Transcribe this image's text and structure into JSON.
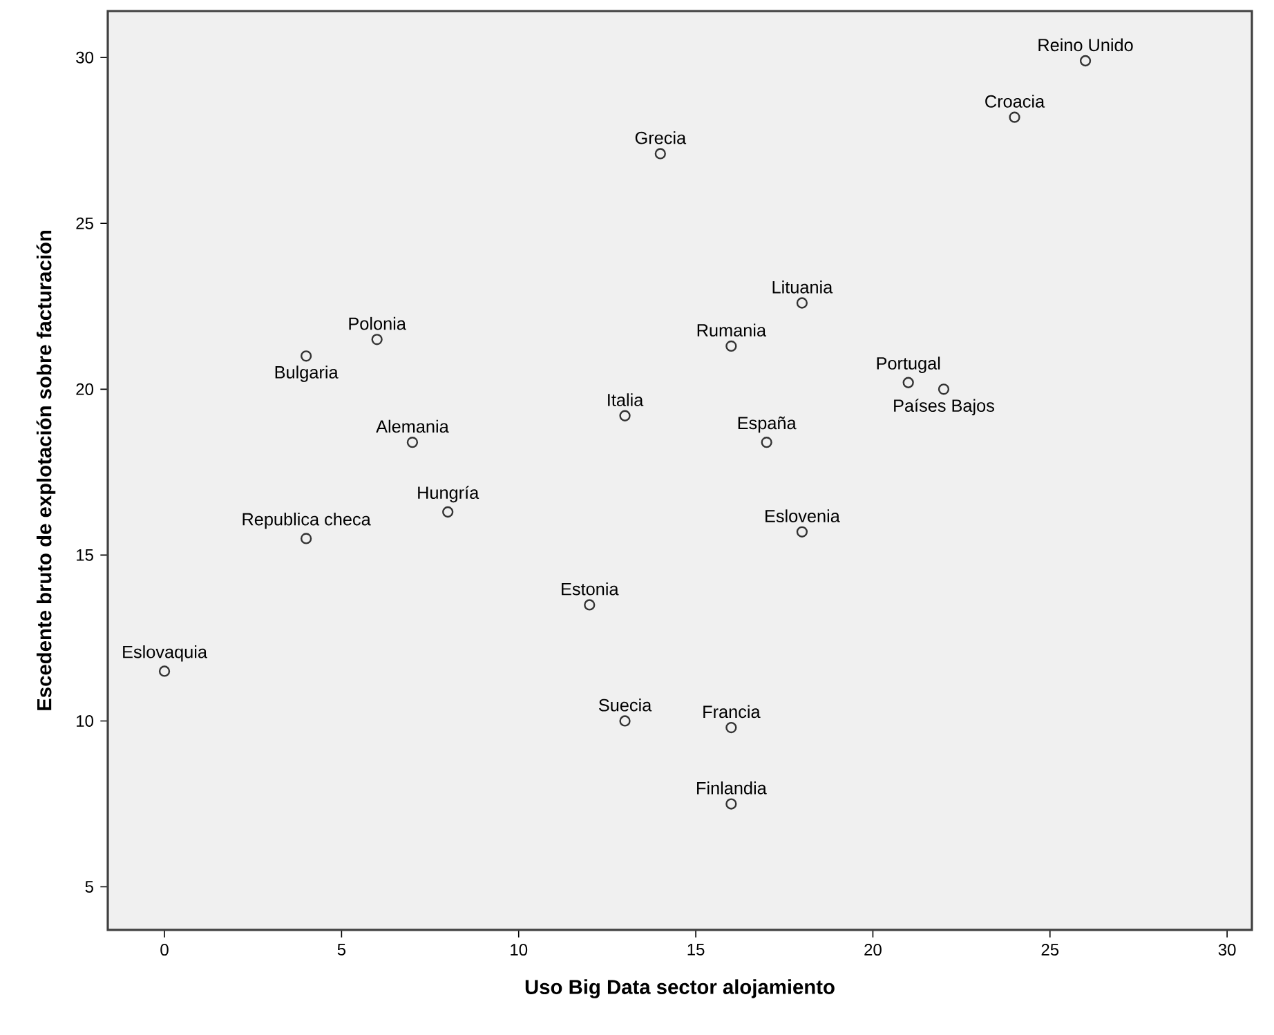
{
  "chart_data": {
    "type": "scatter",
    "xlabel": "Uso Big Data sector alojamiento",
    "ylabel": "Escedente bruto de explotación sobre facturación",
    "x": [
      26,
      24,
      14,
      18,
      16,
      21,
      22,
      13,
      17,
      18,
      12,
      13,
      16,
      16,
      6,
      4,
      7,
      8,
      4,
      0
    ],
    "values": [
      29.9,
      28.2,
      27.1,
      22.6,
      21.3,
      20.2,
      20.0,
      19.2,
      18.4,
      15.7,
      13.5,
      10.0,
      9.8,
      7.5,
      21.5,
      21.0,
      18.4,
      16.3,
      15.5,
      11.5
    ],
    "color": "#333333",
    "marker": "circle",
    "xlim": [
      -1.6,
      30.7
    ],
    "ylim": [
      3.7,
      31.4
    ],
    "xticks": [
      0,
      5,
      10,
      15,
      20,
      25,
      30
    ],
    "yticks": [
      5,
      10,
      15,
      20,
      25,
      30
    ],
    "grid": false,
    "annotations": [
      {
        "text": "Reino Unido",
        "x": 26,
        "y": 29.9
      },
      {
        "text": "Croacia",
        "x": 24,
        "y": 28.2
      },
      {
        "text": "Grecia",
        "x": 14,
        "y": 27.1
      },
      {
        "text": "Lituania",
        "x": 18,
        "y": 22.6
      },
      {
        "text": "Rumania",
        "x": 16,
        "y": 21.3
      },
      {
        "text": "Portugal",
        "x": 21,
        "y": 20.2
      },
      {
        "text": "Países Bajos",
        "x": 22,
        "y": 20.0
      },
      {
        "text": "Italia",
        "x": 13,
        "y": 19.2
      },
      {
        "text": "España",
        "x": 17,
        "y": 18.4
      },
      {
        "text": "Eslovenia",
        "x": 18,
        "y": 15.7
      },
      {
        "text": "Estonia",
        "x": 12,
        "y": 13.5
      },
      {
        "text": "Suecia",
        "x": 13,
        "y": 10.0
      },
      {
        "text": "Francia",
        "x": 16,
        "y": 9.8
      },
      {
        "text": "Finlandia",
        "x": 16,
        "y": 7.5
      },
      {
        "text": "Polonia",
        "x": 6,
        "y": 21.5
      },
      {
        "text": "Bulgaria",
        "x": 4,
        "y": 21.0
      },
      {
        "text": "Alemania",
        "x": 7,
        "y": 18.4
      },
      {
        "text": "Hungría",
        "x": 8,
        "y": 16.3
      },
      {
        "text": "Republica checa",
        "x": 4,
        "y": 15.5
      },
      {
        "text": "Eslovaquia",
        "x": 0,
        "y": 11.5
      }
    ]
  }
}
